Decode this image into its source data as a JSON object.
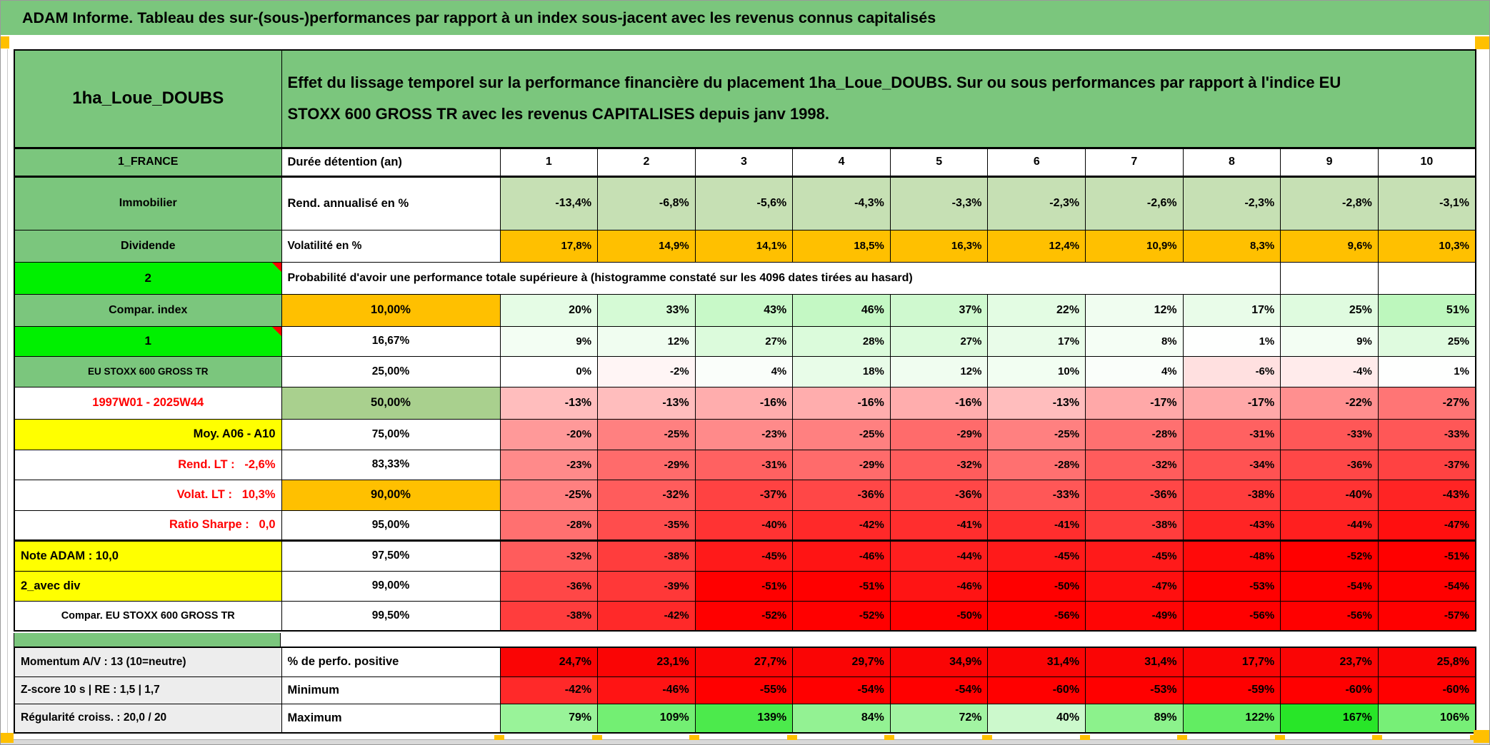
{
  "title": "ADAM Informe. Tableau des sur-(sous-)performances par rapport à un index sous-jacent avec les revenus connus capitalisés",
  "header": {
    "fund_name": "1ha_Loue_DOUBS",
    "description": "Effet du lissage temporel sur la performance financière du placement 1ha_Loue_DOUBS. Sur ou sous performances par rapport à l'indice EU STOXX 600 GROSS TR avec les revenus CAPITALISES depuis janv 1998."
  },
  "colors": {
    "muted_green": "#7BC67D",
    "bright_green": "#00F000",
    "orange": "#FFC000",
    "yellow": "#FFFF00",
    "gray_label": "#EDEDED",
    "light_green": "#C6E0B4",
    "green_mid": "#A9D08E",
    "solid_red": "#FA0505",
    "red_text": "#FF0000",
    "scale_green_max": "#28E628",
    "scale_red_max": "#FF0000",
    "page_band": "#D9D9D9",
    "marker_orange": "#FFC000"
  },
  "table": {
    "rows": [
      {
        "left": "1_FRANCE",
        "left_style": "green",
        "kind": "duration",
        "emph": true,
        "param": "Durée détention (an)",
        "param_align": "left",
        "values": [
          "1",
          "2",
          "3",
          "4",
          "5",
          "6",
          "7",
          "8",
          "9",
          "10"
        ],
        "thick_bottom": true
      },
      {
        "left": "Immobilier",
        "left_style": "green",
        "kind": "fixed",
        "values_style": "lgreen",
        "emph": true,
        "param": "Rend. annualisé en %",
        "param_align": "left",
        "values": [
          "-13,4%",
          "-6,8%",
          "-5,6%",
          "-4,3%",
          "-3,3%",
          "-2,3%",
          "-2,6%",
          "-2,3%",
          "-2,8%",
          "-3,1%"
        ]
      },
      {
        "left": "Dividende",
        "left_style": "green",
        "kind": "fixed",
        "values_style": "orange",
        "emph": false,
        "param": "Volatilité en %",
        "param_align": "left",
        "values": [
          "17,8%",
          "14,9%",
          "14,1%",
          "18,5%",
          "16,3%",
          "12,4%",
          "10,9%",
          "8,3%",
          "9,6%",
          "10,3%"
        ]
      },
      {
        "left": "2",
        "left_style": "bright",
        "left_note": true,
        "kind": "merged",
        "merged_text": "Probabilité d'avoir une performance totale supérieure à (histogramme constaté sur les 4096 dates tirées au hasard)"
      },
      {
        "left": "Compar. index",
        "left_style": "green",
        "kind": "scale",
        "param": "10,00%",
        "param_style": "orange",
        "emph": true,
        "values": [
          "20%",
          "33%",
          "43%",
          "46%",
          "37%",
          "22%",
          "12%",
          "17%",
          "25%",
          "51%"
        ]
      },
      {
        "left": "1",
        "left_style": "bright",
        "left_note": true,
        "kind": "scale",
        "param": "16,67%",
        "values": [
          "9%",
          "12%",
          "27%",
          "28%",
          "27%",
          "17%",
          "8%",
          "1%",
          "9%",
          "25%"
        ]
      },
      {
        "left": "EU STOXX 600 GROSS TR",
        "left_style": "green",
        "left_small": true,
        "kind": "scale",
        "param": "25,00%",
        "values": [
          "0%",
          "-2%",
          "4%",
          "18%",
          "12%",
          "10%",
          "4%",
          "-6%",
          "-4%",
          "1%"
        ]
      },
      {
        "left": "1997W01 - 2025W44",
        "left_style": "red_c",
        "kind": "scale",
        "param": "50,00%",
        "param_style": "green50",
        "emph": true,
        "values": [
          "-13%",
          "-13%",
          "-16%",
          "-16%",
          "-16%",
          "-13%",
          "-17%",
          "-17%",
          "-22%",
          "-27%"
        ]
      },
      {
        "left": "Moy. A06 - A10",
        "left_style": "yellow_r",
        "kind": "scale",
        "param": "75,00%",
        "values": [
          "-20%",
          "-25%",
          "-23%",
          "-25%",
          "-29%",
          "-25%",
          "-28%",
          "-31%",
          "-33%",
          "-33%"
        ]
      },
      {
        "left": "Rend. LT :   -2,6%",
        "left_style": "red_r",
        "kind": "scale",
        "param": "83,33%",
        "values": [
          "-23%",
          "-29%",
          "-31%",
          "-29%",
          "-32%",
          "-28%",
          "-32%",
          "-34%",
          "-36%",
          "-37%"
        ]
      },
      {
        "left": "Volat. LT :   10,3%",
        "left_style": "red_r",
        "kind": "scale",
        "param": "90,00%",
        "param_style": "orange",
        "emph": true,
        "values": [
          "-25%",
          "-32%",
          "-37%",
          "-36%",
          "-36%",
          "-33%",
          "-36%",
          "-38%",
          "-40%",
          "-43%"
        ]
      },
      {
        "left": "Ratio Sharpe :   0,0",
        "left_style": "red_r",
        "kind": "scale",
        "param": "95,00%",
        "values": [
          "-28%",
          "-35%",
          "-40%",
          "-42%",
          "-41%",
          "-41%",
          "-38%",
          "-43%",
          "-44%",
          "-47%"
        ],
        "thick_bottom": true
      },
      {
        "left": "Note ADAM : 10,0",
        "left_style": "yellow_l",
        "kind": "scale",
        "param": "97,50%",
        "values": [
          "-32%",
          "-38%",
          "-45%",
          "-46%",
          "-44%",
          "-45%",
          "-45%",
          "-48%",
          "-52%",
          "-51%"
        ]
      },
      {
        "left": "2_avec div",
        "left_style": "yellow_l",
        "kind": "scale",
        "param": "99,00%",
        "values": [
          "-36%",
          "-39%",
          "-51%",
          "-51%",
          "-46%",
          "-50%",
          "-47%",
          "-53%",
          "-54%",
          "-54%"
        ]
      },
      {
        "left": "Compar. EU STOXX 600 GROSS TR",
        "left_style": "white_c",
        "kind": "scale",
        "param": "99,50%",
        "values": [
          "-38%",
          "-42%",
          "-52%",
          "-52%",
          "-50%",
          "-56%",
          "-49%",
          "-56%",
          "-56%",
          "-57%"
        ]
      }
    ],
    "footer_rows": [
      {
        "left": "Momentum A/V : 13 (10=neutre)",
        "left_style": "gray",
        "kind": "solid_red",
        "emph": true,
        "param": "% de perfo. positive",
        "param_align": "left",
        "values": [
          "24,7%",
          "23,1%",
          "27,7%",
          "29,7%",
          "34,9%",
          "31,4%",
          "31,4%",
          "17,7%",
          "23,7%",
          "25,8%"
        ]
      },
      {
        "left": "Z-score 10 s | RE : 1,5 | 1,7",
        "left_style": "gray",
        "kind": "scale",
        "emph": true,
        "param": "Minimum",
        "param_align": "left",
        "values": [
          "-42%",
          "-46%",
          "-55%",
          "-54%",
          "-54%",
          "-60%",
          "-53%",
          "-59%",
          "-60%",
          "-60%"
        ]
      },
      {
        "left": "Régularité croiss. : 20,0 / 20",
        "left_style": "gray",
        "kind": "scale",
        "emph": true,
        "param": "Maximum",
        "param_align": "left",
        "values": [
          "79%",
          "109%",
          "139%",
          "84%",
          "72%",
          "40%",
          "89%",
          "122%",
          "167%",
          "106%"
        ]
      }
    ]
  }
}
